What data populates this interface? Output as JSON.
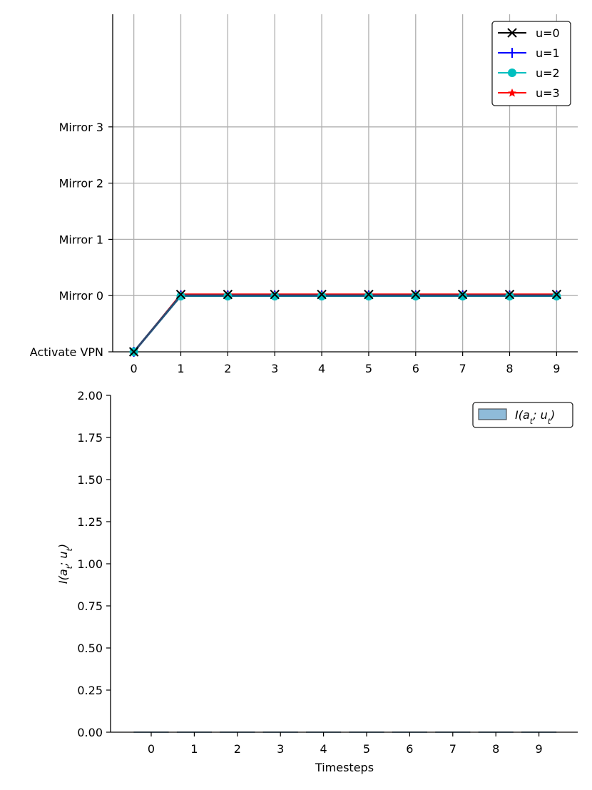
{
  "chart_data": [
    {
      "type": "line",
      "x": [
        0,
        1,
        2,
        3,
        4,
        5,
        6,
        7,
        8,
        9
      ],
      "xlim": [
        -0.45,
        9.45
      ],
      "ylim": [
        0,
        4
      ],
      "y_categories": [
        "Activate VPN",
        "Mirror 0",
        "Mirror 1",
        "Mirror 2",
        "Mirror 3"
      ],
      "grid": true,
      "legend_position": "top-right",
      "series": [
        {
          "name": "u=0",
          "color": "#000000",
          "marker": "x",
          "values": [
            0,
            1,
            1,
            1,
            1,
            1,
            1,
            1,
            1,
            1
          ]
        },
        {
          "name": "u=1",
          "color": "#0000ff",
          "marker": "plus",
          "values": [
            0,
            1,
            1,
            1,
            1,
            1,
            1,
            1,
            1,
            1
          ]
        },
        {
          "name": "u=2",
          "color": "#00bfbf",
          "marker": "circle",
          "values": [
            0,
            1,
            1,
            1,
            1,
            1,
            1,
            1,
            1,
            1
          ]
        },
        {
          "name": "u=3",
          "color": "#ff0000",
          "marker": "star",
          "values": [
            0,
            1,
            1,
            1,
            1,
            1,
            1,
            1,
            1,
            1
          ]
        }
      ]
    },
    {
      "type": "bar",
      "categories": [
        "0",
        "1",
        "2",
        "3",
        "4",
        "5",
        "6",
        "7",
        "8",
        "9"
      ],
      "values": [
        0,
        0,
        0,
        0,
        0,
        0,
        0,
        0,
        0,
        0
      ],
      "ylim": [
        0,
        2
      ],
      "y_ticks": [
        "0.00",
        "0.25",
        "0.50",
        "0.75",
        "1.00",
        "1.25",
        "1.50",
        "1.75",
        "2.00"
      ],
      "xlabel": "Timesteps",
      "ylabel": "I(a_t; u_t)",
      "legend": "I(a_t; u_t)",
      "color": "#1f77b4",
      "grid": false,
      "legend_position": "top-right"
    }
  ]
}
